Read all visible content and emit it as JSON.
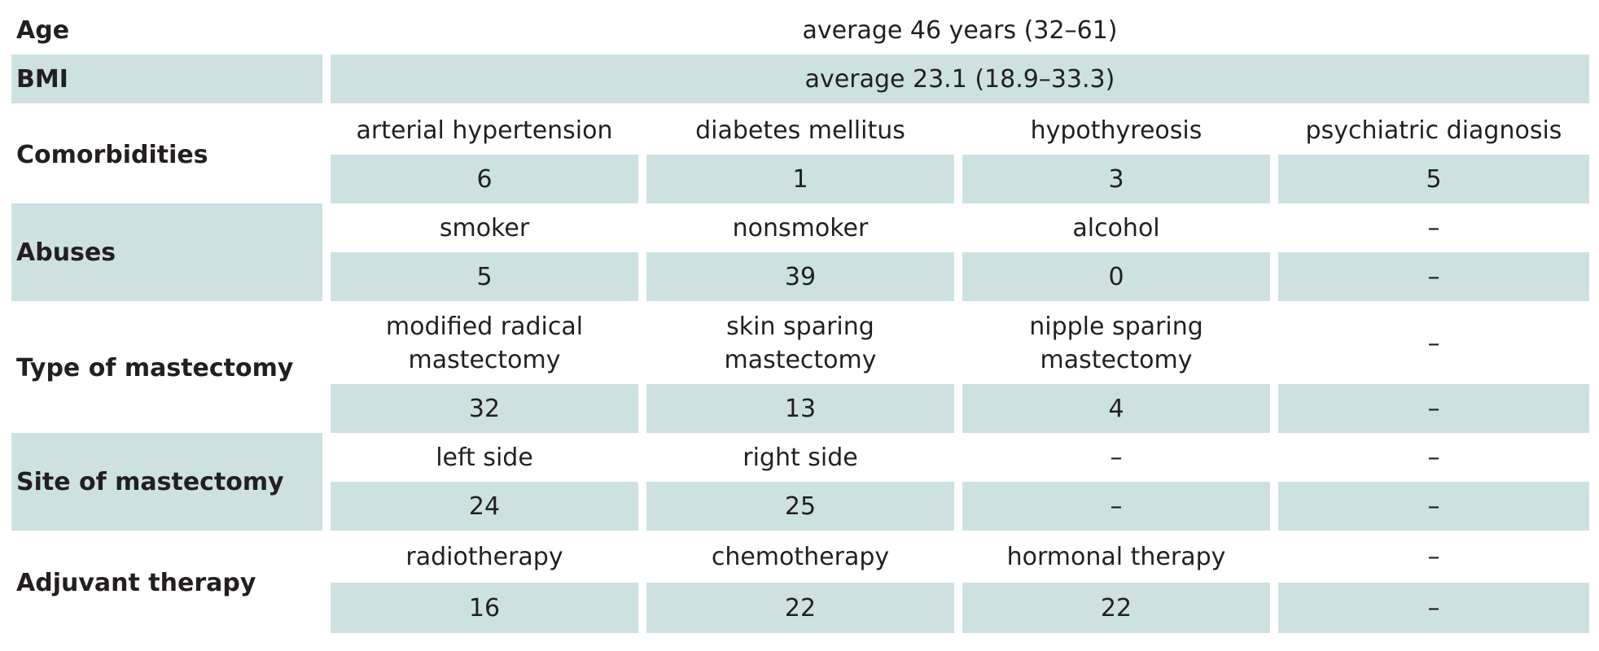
{
  "rows": {
    "age": {
      "label": "Age",
      "value": "average 46 years (32–61)"
    },
    "bmi": {
      "label": "BMI",
      "value": "average 23.1 (18.9–33.3)"
    },
    "comorbidities": {
      "label": "Comorbidities",
      "headers": [
        "arterial hypertension",
        "diabetes mellitus",
        "hypothyreosis",
        "psychiatric diagnosis"
      ],
      "values": [
        "6",
        "1",
        "3",
        "5"
      ]
    },
    "abuses": {
      "label": "Abuses",
      "headers": [
        "smoker",
        "nonsmoker",
        "alcohol",
        "–"
      ],
      "values": [
        "5",
        "39",
        "0",
        "–"
      ]
    },
    "type_of_mastectomy": {
      "label": "Type of mastectomy",
      "headers": [
        "modified radical\nmastectomy",
        "skin sparing\nmastectomy",
        "nipple sparing\nmastectomy",
        "–"
      ],
      "values": [
        "32",
        "13",
        "4",
        "–"
      ]
    },
    "site_of_mastectomy": {
      "label": "Site of mastectomy",
      "headers": [
        "left side",
        "right side",
        "–",
        "–"
      ],
      "values": [
        "24",
        "25",
        "–",
        "–"
      ]
    },
    "adjuvant_therapy": {
      "label": "Adjuvant therapy",
      "headers": [
        "radiotherapy",
        "chemotherapy",
        "hormonal therapy",
        "–"
      ],
      "values": [
        "16",
        "22",
        "22",
        "–"
      ]
    }
  },
  "colors": {
    "shade": "#cde1e1",
    "text": "#231f20",
    "background": "#ffffff"
  }
}
